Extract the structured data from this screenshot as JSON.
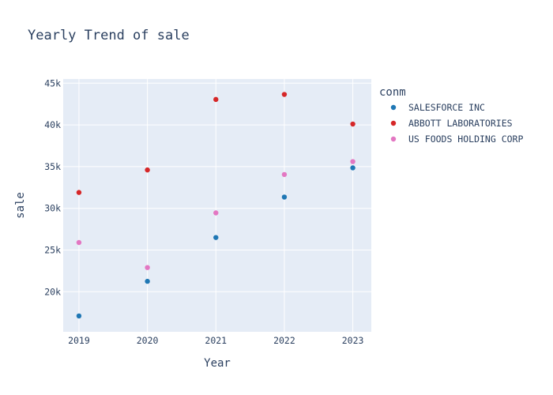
{
  "chart_data": {
    "type": "scatter",
    "title": "Yearly Trend of sale",
    "xlabel": "Year",
    "ylabel": "sale",
    "x": [
      2019,
      2020,
      2021,
      2022,
      2023
    ],
    "x_tick_labels": [
      "2019",
      "2020",
      "2021",
      "2022",
      "2023"
    ],
    "y_ticks": [
      20000,
      25000,
      30000,
      35000,
      40000,
      45000
    ],
    "y_tick_labels": [
      "20k",
      "25k",
      "30k",
      "35k",
      "40k",
      "45k"
    ],
    "ylim": [
      15200,
      45500
    ],
    "xlim": [
      2018.77,
      2023.27
    ],
    "grid": true,
    "legend": {
      "title": "conm",
      "position": "right"
    },
    "series": [
      {
        "name": "SALESFORCE INC",
        "color": "#1f77b4",
        "values": [
          17100,
          21250,
          26500,
          31350,
          34850
        ]
      },
      {
        "name": "ABBOTT LABORATORIES",
        "color": "#d62728",
        "values": [
          31900,
          34600,
          43050,
          43650,
          40100
        ]
      },
      {
        "name": "US FOODS HOLDING CORP",
        "color": "#e377c2",
        "values": [
          25900,
          22900,
          29450,
          34050,
          35600
        ]
      }
    ]
  }
}
